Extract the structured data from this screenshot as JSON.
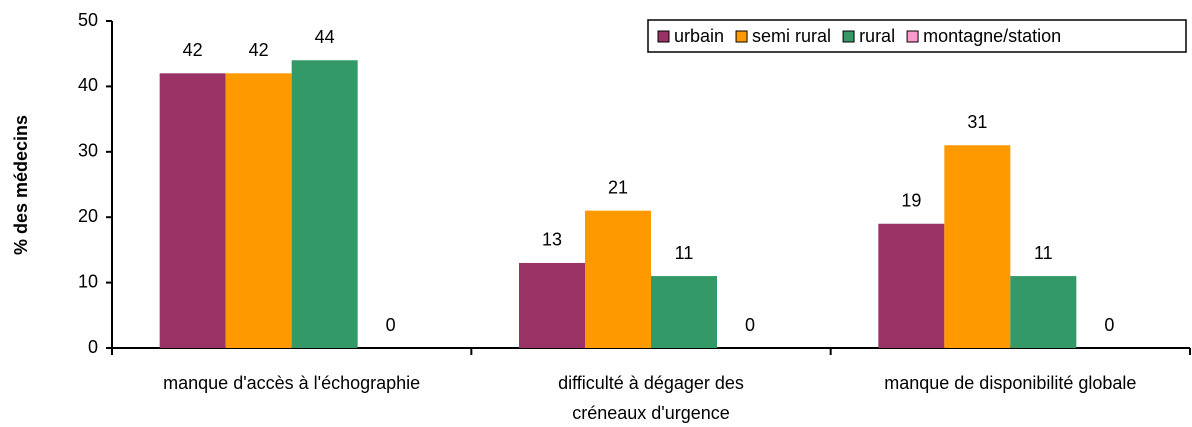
{
  "chart_data": {
    "type": "bar",
    "y_label": "% des médecins",
    "categories": [
      "manque d'accès à l'échographie",
      "difficulté à dégager des\ncréneaux d'urgence",
      "manque de disponibilité globale"
    ],
    "series": [
      {
        "name": "urbain",
        "color": "#993366",
        "values": [
          42,
          13,
          19
        ]
      },
      {
        "name": "semi rural",
        "color": "#ff9900",
        "values": [
          42,
          21,
          31
        ]
      },
      {
        "name": "rural",
        "color": "#339966",
        "values": [
          44,
          11,
          11
        ]
      },
      {
        "name": "montagne/station",
        "color": "#ff99cc",
        "values": [
          0,
          0,
          0
        ]
      }
    ],
    "ylim": [
      0,
      50
    ],
    "yticks": [
      0,
      10,
      20,
      30,
      40,
      50
    ],
    "grid": false,
    "legend": "top-right",
    "data_labels": true
  }
}
